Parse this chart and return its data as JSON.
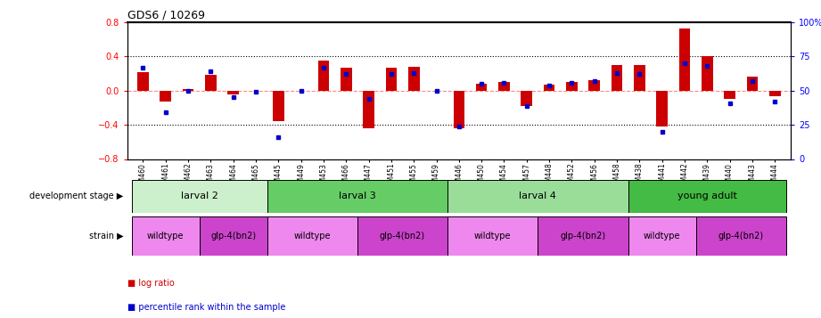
{
  "title": "GDS6 / 10269",
  "samples": [
    "GSM460",
    "GSM461",
    "GSM462",
    "GSM463",
    "GSM464",
    "GSM465",
    "GSM445",
    "GSM449",
    "GSM453",
    "GSM466",
    "GSM447",
    "GSM451",
    "GSM455",
    "GSM459",
    "GSM446",
    "GSM450",
    "GSM454",
    "GSM457",
    "GSM448",
    "GSM452",
    "GSM456",
    "GSM458",
    "GSM438",
    "GSM441",
    "GSM442",
    "GSM439",
    "GSM440",
    "GSM443",
    "GSM444"
  ],
  "log_ratio": [
    0.22,
    -0.13,
    0.02,
    0.19,
    -0.04,
    0.0,
    -0.36,
    0.0,
    0.35,
    0.27,
    -0.44,
    0.27,
    0.28,
    0.0,
    -0.44,
    0.08,
    0.1,
    -0.18,
    0.07,
    0.1,
    0.12,
    0.3,
    0.3,
    -0.42,
    0.73,
    0.4,
    -0.1,
    0.16,
    -0.06
  ],
  "percentile": [
    67,
    34,
    50,
    64,
    45,
    49,
    16,
    50,
    67,
    62,
    44,
    62,
    63,
    50,
    24,
    55,
    56,
    39,
    54,
    56,
    57,
    63,
    62,
    20,
    70,
    68,
    41,
    57,
    42
  ],
  "ylim": [
    -0.8,
    0.8
  ],
  "yticks_left": [
    -0.8,
    -0.4,
    0.0,
    0.4,
    0.8
  ],
  "yticks_right_vals": [
    0,
    25,
    50,
    75,
    100
  ],
  "yticks_right_labels": [
    "0",
    "25",
    "50",
    "75",
    "100%"
  ],
  "hlines_dotted": [
    0.4,
    -0.4
  ],
  "zero_line_color": "#ff8888",
  "bar_color": "#cc0000",
  "dot_color": "#0000cc",
  "development_stages": [
    {
      "label": "larval 2",
      "start": 0,
      "end": 6,
      "color": "#ccf0cc"
    },
    {
      "label": "larval 3",
      "start": 6,
      "end": 14,
      "color": "#66cc66"
    },
    {
      "label": "larval 4",
      "start": 14,
      "end": 22,
      "color": "#99dd99"
    },
    {
      "label": "young adult",
      "start": 22,
      "end": 29,
      "color": "#44bb44"
    }
  ],
  "strains": [
    {
      "label": "wildtype",
      "start": 0,
      "end": 3,
      "color": "#ee88ee"
    },
    {
      "label": "glp-4(bn2)",
      "start": 3,
      "end": 6,
      "color": "#cc44cc"
    },
    {
      "label": "wildtype",
      "start": 6,
      "end": 10,
      "color": "#ee88ee"
    },
    {
      "label": "glp-4(bn2)",
      "start": 10,
      "end": 14,
      "color": "#cc44cc"
    },
    {
      "label": "wildtype",
      "start": 14,
      "end": 18,
      "color": "#ee88ee"
    },
    {
      "label": "glp-4(bn2)",
      "start": 18,
      "end": 22,
      "color": "#cc44cc"
    },
    {
      "label": "wildtype",
      "start": 22,
      "end": 25,
      "color": "#ee88ee"
    },
    {
      "label": "glp-4(bn2)",
      "start": 25,
      "end": 29,
      "color": "#cc44cc"
    }
  ]
}
